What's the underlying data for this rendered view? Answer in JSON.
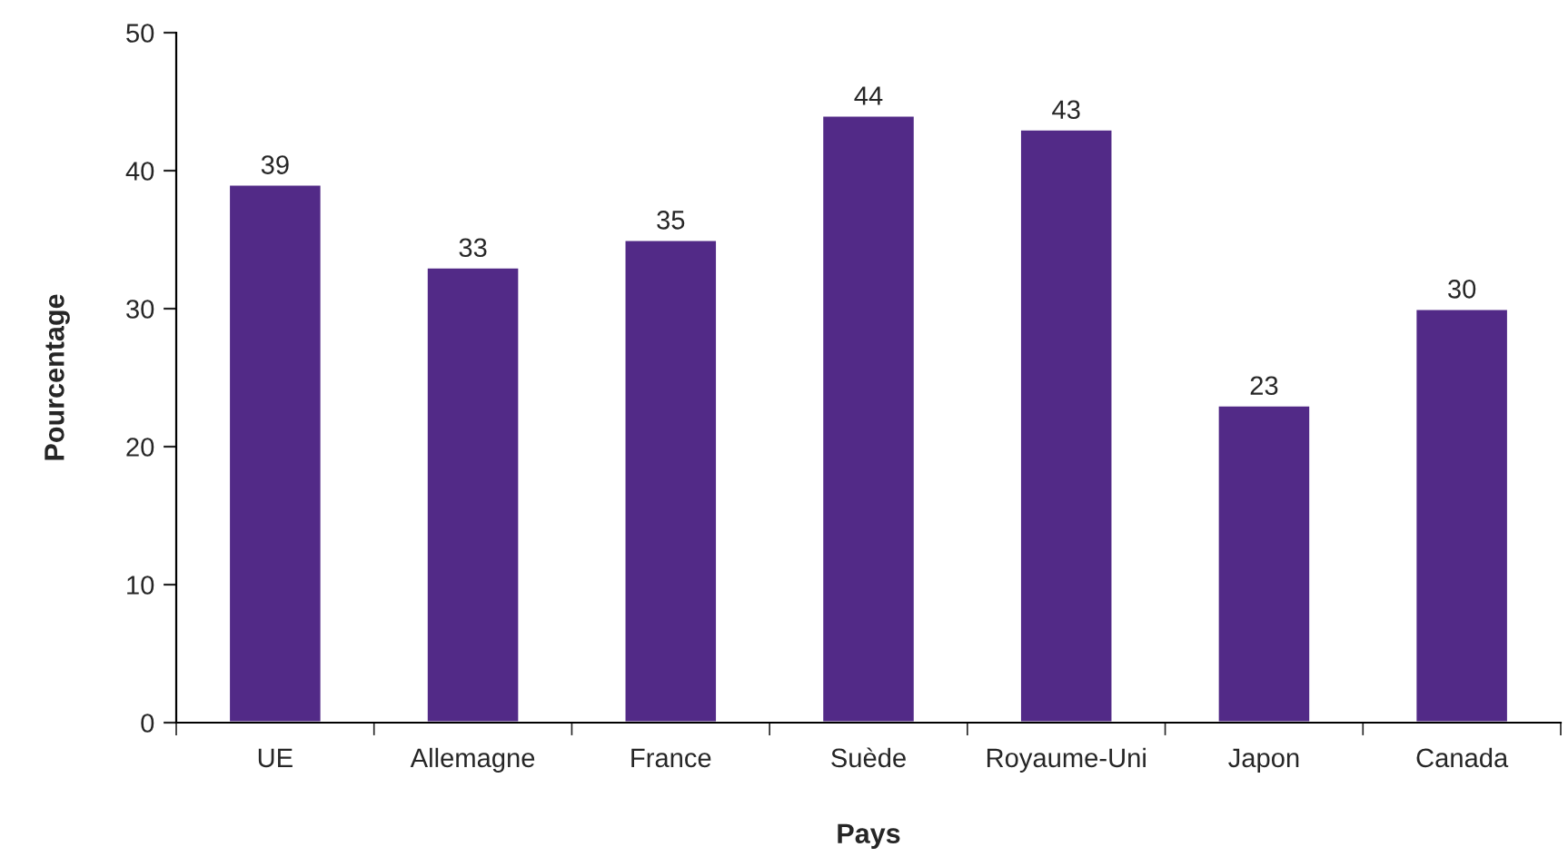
{
  "chart_data": {
    "type": "bar",
    "xlabel": "Pays",
    "ylabel": "Pourcentage",
    "categories": [
      "UE",
      "Allemagne",
      "France",
      "Suède",
      "Royaume-Uni",
      "Japon",
      "Canada"
    ],
    "values": [
      39,
      33,
      35,
      44,
      43,
      23,
      30
    ],
    "color": "#522a87",
    "ylim": [
      0,
      50
    ],
    "yticks": [
      0,
      10,
      20,
      30,
      40,
      50
    ],
    "grid": false,
    "data_labels": true
  }
}
